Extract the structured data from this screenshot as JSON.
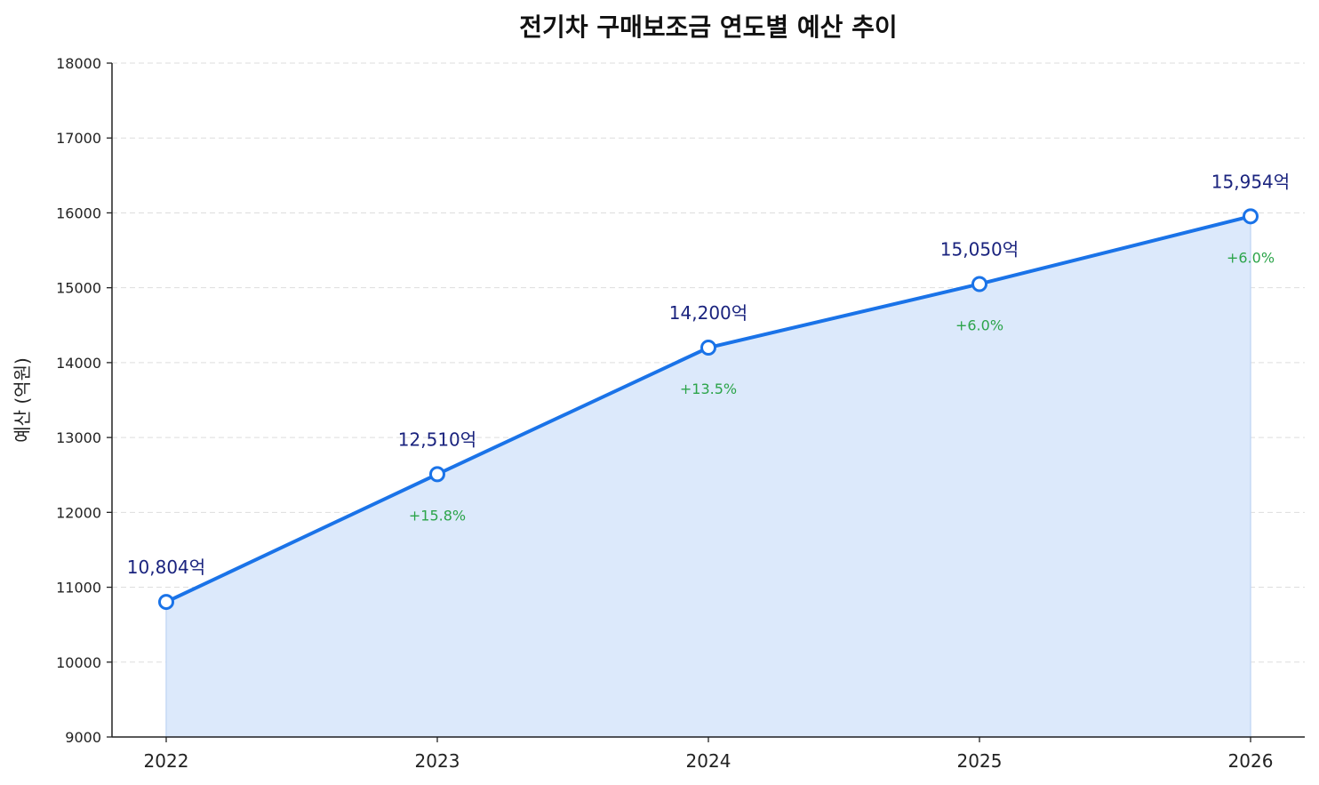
{
  "chart_data": {
    "type": "line",
    "title": "전기차 구매보조금 연도별 예산 추이",
    "xlabel": "",
    "ylabel": "예산 (억원)",
    "categories": [
      "2022",
      "2023",
      "2024",
      "2025",
      "2026"
    ],
    "values": [
      10804,
      12510,
      14200,
      15050,
      15954
    ],
    "value_labels": [
      "10,804억",
      "12,510억",
      "14,200억",
      "15,050억",
      "15,954억"
    ],
    "growth_labels": [
      "",
      "+15.8%",
      "+13.5%",
      "+6.0%",
      "+6.0%"
    ],
    "ylim": [
      9000,
      18000
    ],
    "yticks": [
      "9000",
      "10000",
      "11000",
      "12000",
      "13000",
      "14000",
      "15000",
      "16000",
      "17000",
      "18000"
    ],
    "grid": "horizontal dashed",
    "area_fill": true,
    "colors": {
      "line": "#1a73e8",
      "fill": "#dce9fb",
      "value_label": "#1a237e",
      "growth_label": "#2ca44a",
      "grid": "#dddddd"
    }
  }
}
